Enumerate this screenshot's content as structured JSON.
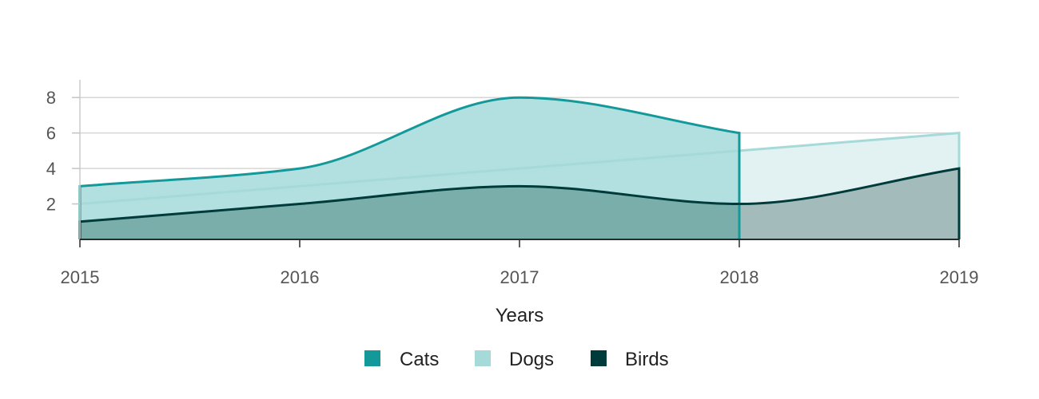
{
  "chart_data": {
    "type": "area",
    "xlabel": "Years",
    "ylabel": "",
    "x": [
      "2015",
      "2016",
      "2017",
      "2018",
      "2019"
    ],
    "ylim": [
      0,
      9
    ],
    "y_ticks": [
      "2",
      "4",
      "6",
      "8"
    ],
    "grid": true,
    "legend_position": "bottom",
    "series": [
      {
        "name": "Cats",
        "values": [
          3,
          4,
          8,
          6,
          null
        ],
        "color": "#13999a",
        "fill": "#b2dfdf",
        "curve": "smooth"
      },
      {
        "name": "Dogs",
        "values": [
          2,
          3,
          4,
          5,
          6
        ],
        "color": "#a6dad8",
        "fill": "#e2f2f2",
        "curve": "linear"
      },
      {
        "name": "Birds",
        "values": [
          1,
          2,
          3,
          2,
          4
        ],
        "color": "#003b3b",
        "fill_solid": "#7aaeab",
        "fill_light": "#a3bcbb",
        "curve": "smooth"
      }
    ]
  }
}
